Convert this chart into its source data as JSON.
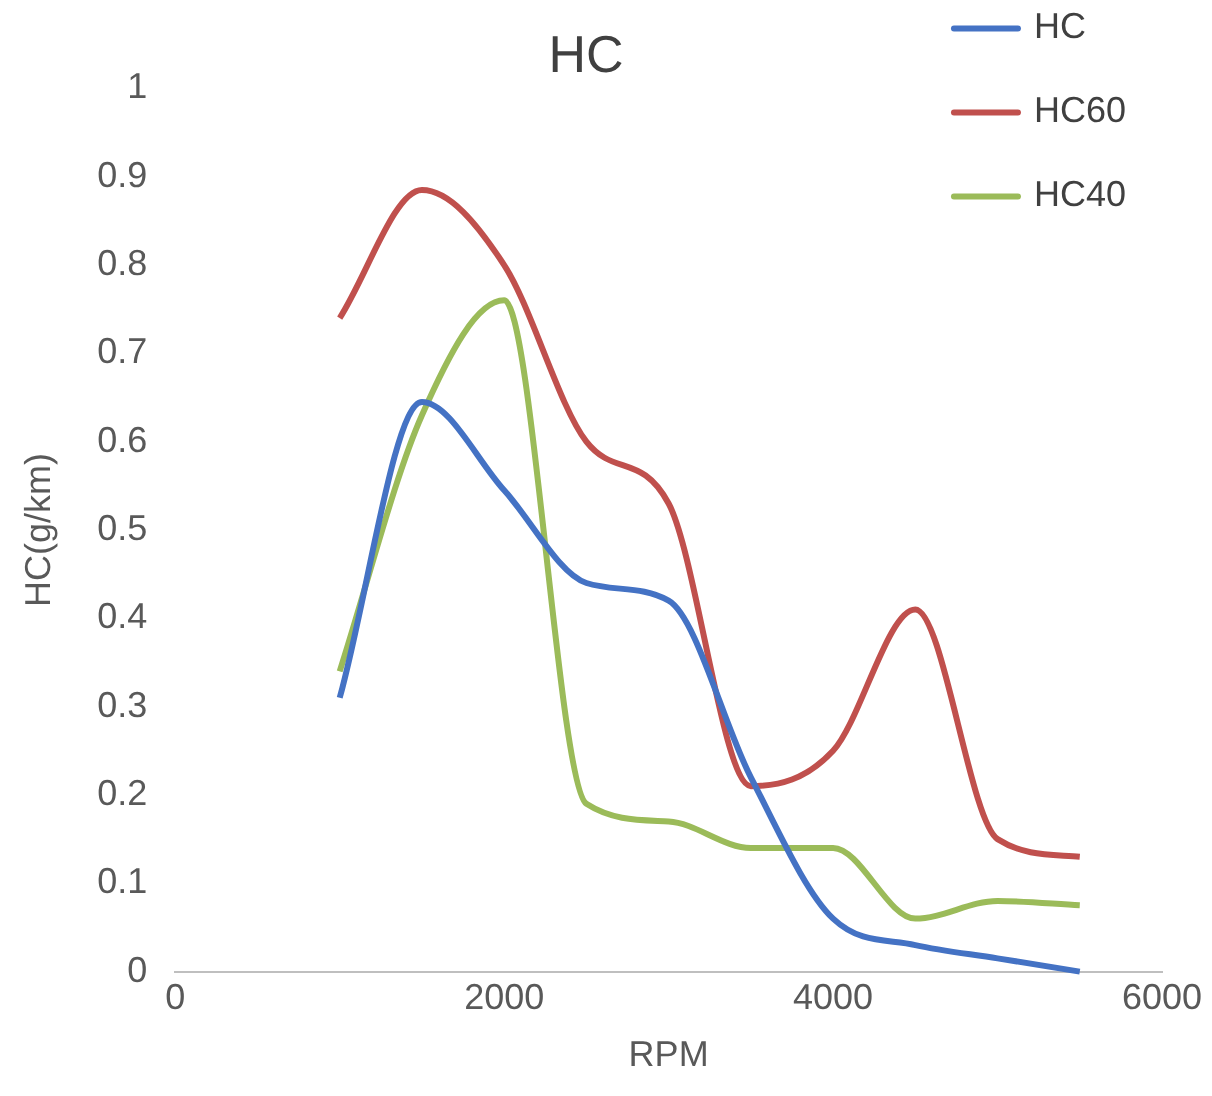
{
  "chart_data": {
    "type": "line",
    "title": "HC",
    "xlabel": "RPM",
    "ylabel": "HC(g/km)",
    "x": [
      1000,
      1500,
      2000,
      2500,
      3000,
      3500,
      4000,
      4500,
      5000,
      5500
    ],
    "series": [
      {
        "name": "HC",
        "color": "#4472c4",
        "values": [
          0.31,
          0.645,
          0.545,
          0.44,
          0.42,
          0.22,
          0.06,
          0.03,
          0.015,
          0
        ]
      },
      {
        "name": "HC60",
        "color": "#c0504d",
        "values": [
          0.74,
          0.885,
          0.8,
          0.6,
          0.53,
          0.21,
          0.25,
          0.41,
          0.15,
          0.13
        ]
      },
      {
        "name": "HC40",
        "color": "#9bbb59",
        "values": [
          0.34,
          0.63,
          0.76,
          0.19,
          0.17,
          0.14,
          0.14,
          0.06,
          0.08,
          0.075
        ]
      }
    ],
    "xlim": [
      0,
      6000
    ],
    "xticks": [
      0,
      2000,
      4000,
      6000
    ],
    "ylim": [
      0,
      1
    ],
    "yticks": [
      0,
      0.1,
      0.2,
      0.3,
      0.4,
      0.5,
      0.6,
      0.7,
      0.8,
      0.9,
      1
    ],
    "grid": false,
    "legend": "top right",
    "marker": "none",
    "line_style": "solid"
  }
}
